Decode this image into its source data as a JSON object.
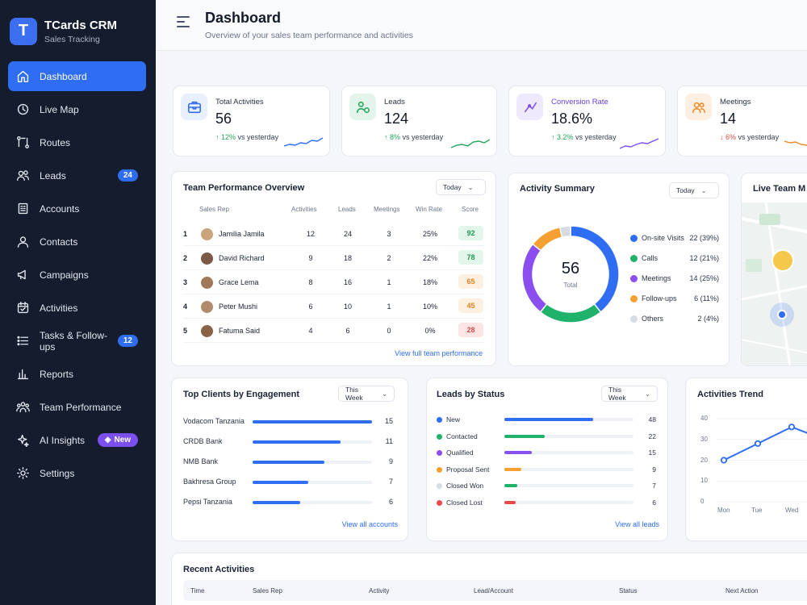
{
  "brand": {
    "title": "TCards CRM",
    "subtitle": "Sales Tracking",
    "logo_letter": "T"
  },
  "sidebar": {
    "items": [
      {
        "label": "Dashboard",
        "icon": "home-icon",
        "active": true
      },
      {
        "label": "Live Map",
        "icon": "map-pin-icon"
      },
      {
        "label": "Routes",
        "icon": "routes-icon"
      },
      {
        "label": "Leads",
        "icon": "users-icon",
        "badge": "24"
      },
      {
        "label": "Accounts",
        "icon": "building-icon"
      },
      {
        "label": "Contacts",
        "icon": "user-icon"
      },
      {
        "label": "Campaigns",
        "icon": "megaphone-icon"
      },
      {
        "label": "Activities",
        "icon": "calendar-check-icon"
      },
      {
        "label": "Tasks & Follow-ups",
        "icon": "list-icon",
        "badge": "12"
      },
      {
        "label": "Reports",
        "icon": "bar-chart-icon"
      },
      {
        "label": "Team Performance",
        "icon": "team-icon"
      },
      {
        "label": "AI Insights",
        "icon": "sparkle-icon",
        "badge": "New"
      },
      {
        "label": "Settings",
        "icon": "gear-icon"
      }
    ]
  },
  "header": {
    "title": "Dashboard",
    "subtitle": "Overview of your sales team performance and activities"
  },
  "stats": [
    {
      "label": "Total Activities",
      "value": "56",
      "delta": "12%",
      "delta_dir": "up",
      "suffix": "vs yesterday",
      "icon": "briefcase-icon",
      "color": "#2f6df2",
      "bg": "#e8effd",
      "label_color": "#2a3244"
    },
    {
      "label": "Leads",
      "value": "124",
      "delta": "8%",
      "delta_dir": "up",
      "suffix": "vs yesterday",
      "icon": "leads-icon",
      "color": "#22a55a",
      "bg": "#e3f5ea",
      "label_color": "#2a3244"
    },
    {
      "label": "Conversion Rate",
      "value": "18.6%",
      "delta": "3.2%",
      "delta_dir": "up",
      "suffix": "vs yesterday",
      "icon": "conversion-icon",
      "color": "#7c4ff0",
      "bg": "#efe9fd",
      "label_color": "#6a3fd8"
    },
    {
      "label": "Meetings",
      "value": "14",
      "delta": "6%",
      "delta_dir": "down",
      "suffix": "vs yesterday",
      "icon": "meetings-icon",
      "color": "#f08a24",
      "bg": "#fdf0e3",
      "label_color": "#2a3244"
    }
  ],
  "team": {
    "title": "Team Performance Overview",
    "filter": "Today",
    "columns": [
      "Sales Rep",
      "Activities",
      "Leads",
      "Meetings",
      "Win Rate",
      "Score"
    ],
    "rows": [
      {
        "rank": "1",
        "name": "Jamilia Jamila",
        "activities": "12",
        "leads": "24",
        "meetings": "3",
        "win": "25%",
        "score": "92",
        "score_color": "#1f9a52",
        "score_bg": "#e2f6ea"
      },
      {
        "rank": "2",
        "name": "David Richard",
        "activities": "9",
        "leads": "18",
        "meetings": "2",
        "win": "22%",
        "score": "78",
        "score_color": "#1f9a52",
        "score_bg": "#e2f6ea"
      },
      {
        "rank": "3",
        "name": "Grace Lema",
        "activities": "8",
        "leads": "16",
        "meetings": "1",
        "win": "18%",
        "score": "65",
        "score_color": "#e0841e",
        "score_bg": "#fdf0e0"
      },
      {
        "rank": "4",
        "name": "Peter Mushi",
        "activities": "6",
        "leads": "10",
        "meetings": "1",
        "win": "10%",
        "score": "45",
        "score_color": "#e0841e",
        "score_bg": "#fdf0e0"
      },
      {
        "rank": "5",
        "name": "Fatuma Said",
        "activities": "4",
        "leads": "6",
        "meetings": "0",
        "win": "0%",
        "score": "28",
        "score_color": "#e04848",
        "score_bg": "#fde5e5"
      }
    ],
    "link": "View full team performance"
  },
  "activity_summary": {
    "title": "Activity Summary",
    "filter": "Today",
    "total_value": "56",
    "total_label": "Total",
    "items": [
      {
        "label": "On-site Visits",
        "value": "22 (39%)",
        "count": 22,
        "color": "#2f6df2"
      },
      {
        "label": "Calls",
        "value": "12 (21%)",
        "count": 12,
        "color": "#1fb26a"
      },
      {
        "label": "Meetings",
        "value": "14 (25%)",
        "count": 14,
        "color": "#8b4ff0"
      },
      {
        "label": "Follow-ups",
        "value": "6 (11%)",
        "count": 6,
        "color": "#f5a030"
      },
      {
        "label": "Others",
        "value": "2 (4%)",
        "count": 2,
        "color": "#d7dbe3"
      }
    ]
  },
  "live_map": {
    "title": "Live Team M"
  },
  "top_clients": {
    "title": "Top Clients by Engagement",
    "filter": "This Week",
    "max": 15,
    "rows": [
      {
        "name": "Vodacom Tanzania",
        "value": 15,
        "label": "15"
      },
      {
        "name": "CRDB Bank",
        "value": 11,
        "label": "11"
      },
      {
        "name": "NMB Bank",
        "value": 9,
        "label": "9"
      },
      {
        "name": "Bakhresa Group",
        "value": 7,
        "label": "7"
      },
      {
        "name": "Pepsi Tanzania",
        "value": 6,
        "label": "6"
      }
    ],
    "link": "View all accounts"
  },
  "leads_status": {
    "title": "Leads by Status",
    "filter": "This Week",
    "max": 70,
    "rows": [
      {
        "name": "New",
        "value": 48,
        "label": "48",
        "color": "#2f6df2"
      },
      {
        "name": "Contacted",
        "value": 22,
        "label": "22",
        "color": "#1fb26a"
      },
      {
        "name": "Qualified",
        "value": 15,
        "label": "15",
        "color": "#8b4ff0"
      },
      {
        "name": "Proposal Sent",
        "value": 9,
        "label": "9",
        "color": "#f5a030"
      },
      {
        "name": "Closed Won",
        "value": 7,
        "label": "7",
        "color": "#1fb26a",
        "dot_color": "#d7dbe3"
      },
      {
        "name": "Closed Lost",
        "value": 6,
        "label": "6",
        "color": "#e84a4a"
      }
    ],
    "link": "View all leads"
  },
  "chart_data": {
    "type": "line",
    "title": "Activities Trend",
    "x": [
      "Mon",
      "Tue",
      "Wed"
    ],
    "yticks": [
      "40",
      "30",
      "20",
      "10",
      "0"
    ],
    "ylim": [
      0,
      40
    ],
    "series": [
      {
        "values": [
          20,
          28,
          36
        ],
        "color": "#2f6df2"
      }
    ]
  },
  "recent": {
    "title": "Recent Activities",
    "columns": [
      "Time",
      "Sales Rep",
      "Activity",
      "Lead/Account",
      "Status",
      "Next Action"
    ]
  }
}
